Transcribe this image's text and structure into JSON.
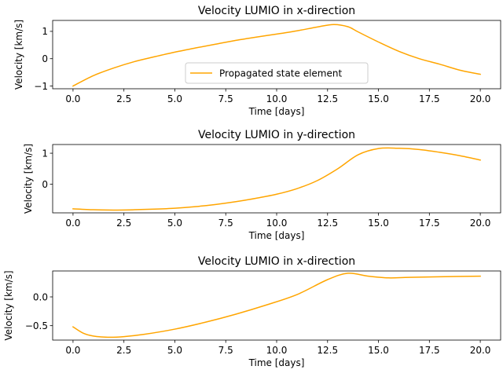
{
  "chart_data": [
    {
      "type": "line",
      "title": "Velocity LUMIO in x-direction",
      "xlabel": "Time [days]",
      "ylabel": "Velocity [km/s]",
      "xlim": [
        -1.0,
        21.0
      ],
      "ylim": [
        -1.1,
        1.4
      ],
      "xticks": [
        "0.0",
        "2.5",
        "5.0",
        "7.5",
        "10.0",
        "12.5",
        "15.0",
        "17.5",
        "20.0"
      ],
      "xtick_values": [
        0,
        2.5,
        5,
        7.5,
        10,
        12.5,
        15,
        17.5,
        20
      ],
      "yticks": [
        "−1",
        "0",
        "1"
      ],
      "ytick_values": [
        -1,
        0,
        1
      ],
      "legend": {
        "entries": [
          "Propagated state element"
        ],
        "location": "lower-center"
      },
      "series": [
        {
          "name": "Propagated state element",
          "color": "#ffa500",
          "x": [
            0,
            1,
            2,
            3,
            4,
            5,
            6,
            7,
            8,
            9,
            10,
            11,
            12,
            12.8,
            13.5,
            14,
            15,
            16,
            17,
            18,
            19,
            20
          ],
          "y": [
            -1.0,
            -0.62,
            -0.34,
            -0.11,
            0.07,
            0.24,
            0.39,
            0.53,
            0.67,
            0.79,
            0.9,
            1.02,
            1.16,
            1.25,
            1.17,
            0.98,
            0.61,
            0.27,
            0.0,
            -0.2,
            -0.42,
            -0.57
          ]
        }
      ]
    },
    {
      "type": "line",
      "title": "Velocity LUMIO in y-direction",
      "xlabel": "Time [days]",
      "ylabel": "Velocity [km/s]",
      "xlim": [
        -1.0,
        21.0
      ],
      "ylim": [
        -0.92,
        1.28
      ],
      "xticks": [
        "0.0",
        "2.5",
        "5.0",
        "7.5",
        "10.0",
        "12.5",
        "15.0",
        "17.5",
        "20.0"
      ],
      "xtick_values": [
        0,
        2.5,
        5,
        7.5,
        10,
        12.5,
        15,
        17.5,
        20
      ],
      "yticks": [
        "0",
        "1"
      ],
      "ytick_values": [
        0,
        1
      ],
      "series": [
        {
          "color": "#ffa500",
          "x": [
            0,
            1,
            2,
            3,
            4,
            5,
            6,
            7,
            8,
            9,
            10,
            11,
            12,
            13,
            14,
            15,
            16,
            17,
            18,
            19,
            20
          ],
          "y": [
            -0.79,
            -0.82,
            -0.83,
            -0.82,
            -0.8,
            -0.77,
            -0.72,
            -0.65,
            -0.56,
            -0.45,
            -0.32,
            -0.14,
            0.12,
            0.5,
            0.95,
            1.15,
            1.16,
            1.12,
            1.03,
            0.92,
            0.78
          ]
        }
      ]
    },
    {
      "type": "line",
      "title": "Velocity LUMIO in x-direction",
      "xlabel": "Time [days]",
      "ylabel": "Velocity [km/s]",
      "xlim": [
        -1.0,
        21.0
      ],
      "ylim": [
        -0.75,
        0.45
      ],
      "xticks": [
        "0.0",
        "2.5",
        "5.0",
        "7.5",
        "10.0",
        "12.5",
        "15.0",
        "17.5",
        "20.0"
      ],
      "xtick_values": [
        0,
        2.5,
        5,
        7.5,
        10,
        12.5,
        15,
        17.5,
        20
      ],
      "yticks": [
        "−0.5",
        "0.0"
      ],
      "ytick_values": [
        -0.5,
        0.0
      ],
      "series": [
        {
          "color": "#ffa500",
          "x": [
            0,
            0.5,
            1,
            1.7,
            2.5,
            3.5,
            5,
            6.5,
            8,
            9.5,
            11,
            12.5,
            13.5,
            14.5,
            15.5,
            16.5,
            18,
            20
          ],
          "y": [
            -0.52,
            -0.63,
            -0.68,
            -0.7,
            -0.69,
            -0.65,
            -0.56,
            -0.44,
            -0.3,
            -0.14,
            0.04,
            0.3,
            0.41,
            0.36,
            0.33,
            0.34,
            0.35,
            0.36
          ]
        }
      ]
    }
  ]
}
